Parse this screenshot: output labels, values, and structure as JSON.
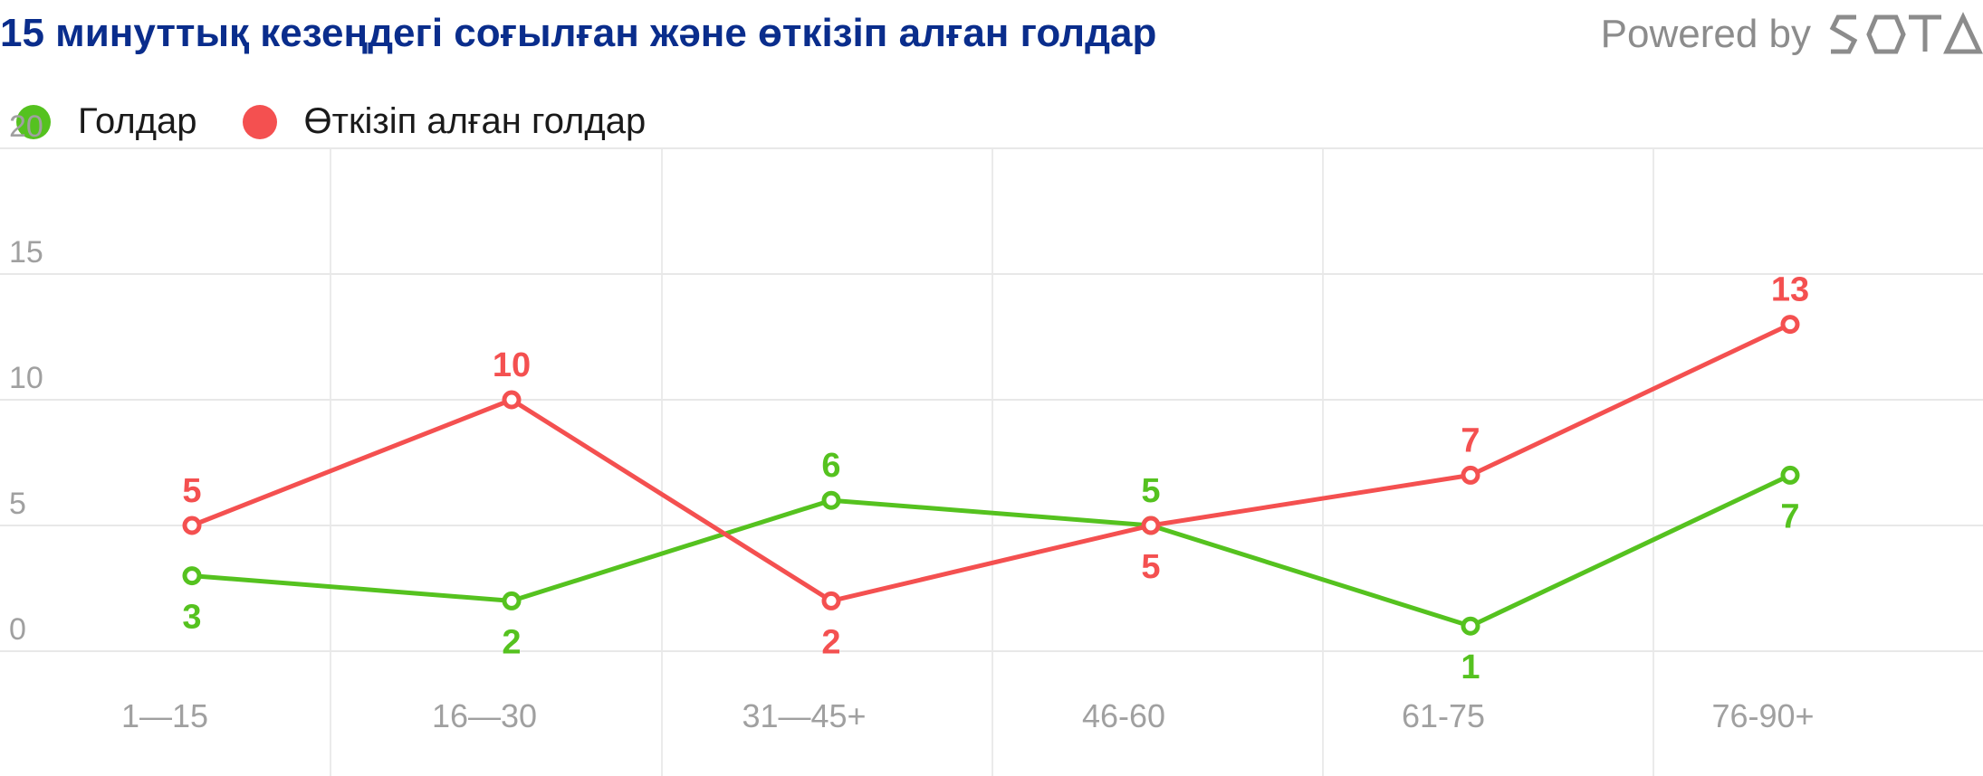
{
  "header": {
    "title": "15 минуттық кезеңдегі соғылған және өткізіп алған голдар",
    "powered_by": "Powered by",
    "brand": "SOTA"
  },
  "chart_data": {
    "type": "line",
    "title": "15 минуттық кезеңдегі соғылған және өткізіп алған голдар",
    "categories": [
      "1—15",
      "16—30",
      "31—45+",
      "46-60",
      "61-75",
      "76-90+"
    ],
    "series": [
      {
        "name": "Голдар",
        "values": [
          3,
          2,
          6,
          5,
          1,
          7
        ],
        "color": "#55c21f"
      },
      {
        "name": "Өткізіп алған голдар",
        "values": [
          5,
          10,
          2,
          5,
          7,
          13
        ],
        "color": "#f45050"
      }
    ],
    "y_ticks": [
      "0",
      "5",
      "10",
      "15",
      "20"
    ],
    "ylim": [
      0,
      20
    ],
    "grid": true,
    "legend_position": "top-left",
    "data_labels": true
  }
}
